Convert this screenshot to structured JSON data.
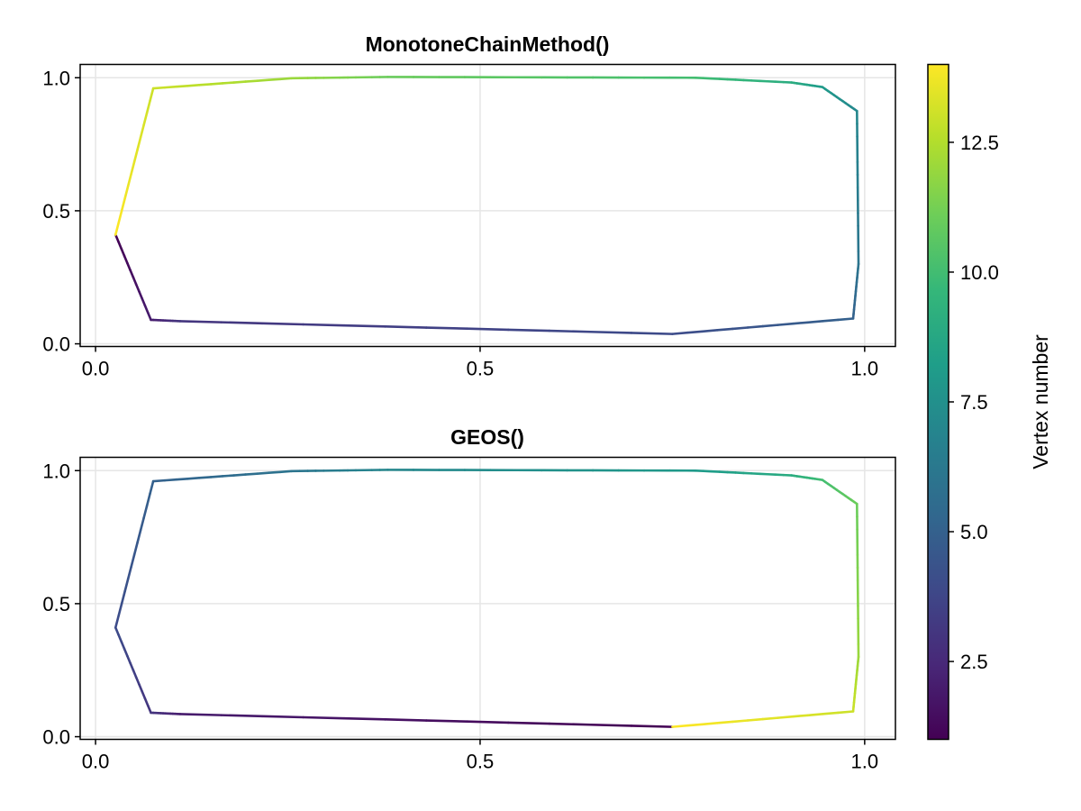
{
  "chart_data": [
    {
      "type": "line",
      "title": "MonotoneChainMethod()",
      "xlim": [
        -0.02,
        1.04
      ],
      "ylim": [
        -0.01,
        1.05
      ],
      "xticks": [
        "0.0",
        "0.5",
        "1.0"
      ],
      "xtick_values": [
        0,
        0.5,
        1.0
      ],
      "yticks": [
        "0.0",
        "0.5",
        "1.0"
      ],
      "ytick_values": [
        0,
        0.5,
        1.0
      ],
      "grid": true,
      "points": [
        [
          0.026,
          0.41
        ],
        [
          0.072,
          0.09
        ],
        [
          0.11,
          0.085
        ],
        [
          0.75,
          0.037
        ],
        [
          0.985,
          0.095
        ],
        [
          0.992,
          0.3
        ],
        [
          0.99,
          0.875
        ],
        [
          0.945,
          0.965
        ],
        [
          0.905,
          0.982
        ],
        [
          0.78,
          1.0
        ],
        [
          0.38,
          1.003
        ],
        [
          0.255,
          0.998
        ],
        [
          0.075,
          0.96
        ],
        [
          0.026,
          0.41
        ]
      ],
      "vertex_numbers": [
        1,
        2,
        3,
        4,
        5,
        6,
        7,
        8,
        9,
        10,
        11,
        12,
        13,
        14
      ]
    },
    {
      "type": "line",
      "title": "GEOS()",
      "xlim": [
        -0.02,
        1.04
      ],
      "ylim": [
        -0.01,
        1.05
      ],
      "xticks": [
        "0.0",
        "0.5",
        "1.0"
      ],
      "xtick_values": [
        0,
        0.5,
        1.0
      ],
      "yticks": [
        "0.0",
        "0.5",
        "1.0"
      ],
      "ytick_values": [
        0,
        0.5,
        1.0
      ],
      "grid": true,
      "points": [
        [
          0.75,
          0.037
        ],
        [
          0.11,
          0.085
        ],
        [
          0.072,
          0.09
        ],
        [
          0.026,
          0.41
        ],
        [
          0.075,
          0.96
        ],
        [
          0.255,
          0.998
        ],
        [
          0.38,
          1.003
        ],
        [
          0.78,
          1.0
        ],
        [
          0.905,
          0.982
        ],
        [
          0.945,
          0.965
        ],
        [
          0.99,
          0.875
        ],
        [
          0.992,
          0.3
        ],
        [
          0.985,
          0.095
        ],
        [
          0.75,
          0.037
        ]
      ],
      "vertex_numbers": [
        1,
        2,
        3,
        4,
        5,
        6,
        7,
        8,
        9,
        10,
        11,
        12,
        13,
        14
      ]
    }
  ],
  "colorbar": {
    "label": "Vertex number",
    "range": [
      1,
      14
    ],
    "ticks": [
      "2.5",
      "5.0",
      "7.5",
      "10.0",
      "12.5"
    ],
    "tick_values": [
      2.5,
      5.0,
      7.5,
      10.0,
      12.5
    ],
    "colormap": "viridis",
    "stops": [
      "#440154",
      "#482878",
      "#3e4989",
      "#31688e",
      "#26828e",
      "#1f9e89",
      "#35b779",
      "#6ece58",
      "#b5de2b",
      "#fde725"
    ]
  }
}
